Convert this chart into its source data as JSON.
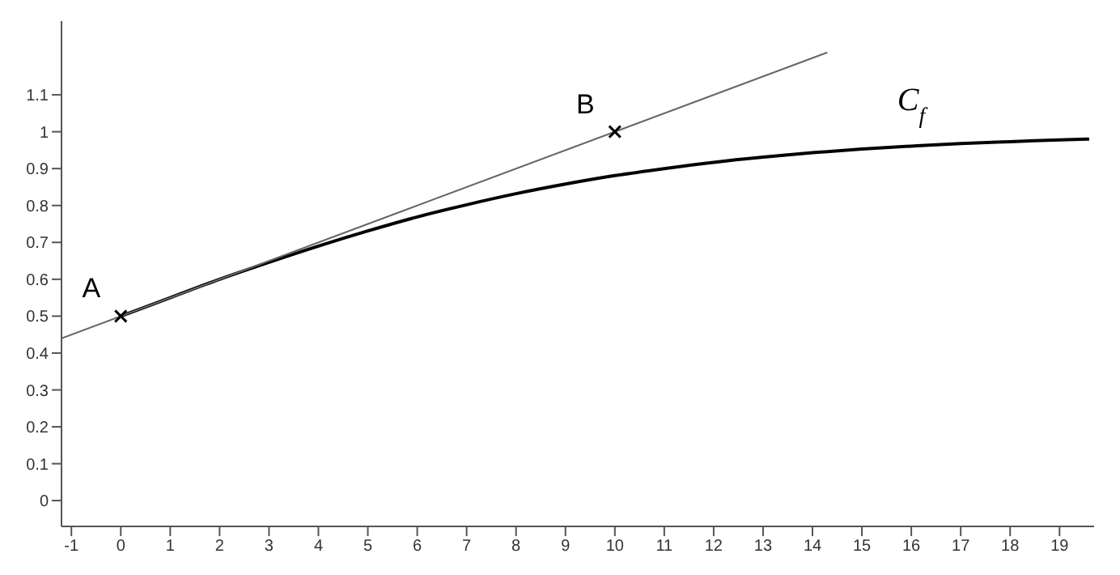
{
  "chart_data": {
    "type": "line",
    "xlim": [
      -1.2,
      19.7
    ],
    "ylim": [
      -0.07,
      1.3
    ],
    "xticks": [
      -1,
      0,
      1,
      2,
      3,
      4,
      5,
      6,
      7,
      8,
      9,
      10,
      11,
      12,
      13,
      14,
      15,
      16,
      17,
      18,
      19
    ],
    "yticks": [
      0,
      0.1,
      0.2,
      0.3,
      0.4,
      0.5,
      0.6,
      0.7,
      0.8,
      0.9,
      1,
      1.1
    ],
    "grid": false,
    "legend": false,
    "series": [
      {
        "name": "C$_{f}$",
        "color": "#000000",
        "x": [
          0,
          1,
          2,
          3,
          4,
          5,
          6,
          7,
          8,
          9,
          10,
          11,
          12,
          13,
          14,
          15,
          16,
          17,
          18,
          19,
          19.6
        ],
        "values": [
          0.5,
          0.55,
          0.6,
          0.646,
          0.69,
          0.731,
          0.769,
          0.802,
          0.832,
          0.858,
          0.881,
          0.9,
          0.917,
          0.931,
          0.943,
          0.953,
          0.961,
          0.968,
          0.973,
          0.978,
          0.98
        ]
      },
      {
        "color": "#666666",
        "x": [
          -1.2,
          14.3
        ],
        "values": [
          0.44,
          1.215
        ]
      },
      {
        "type": "scatter",
        "name": "A",
        "color": "#000000",
        "marker": "cross",
        "x": [
          0
        ],
        "values": [
          0.5
        ]
      },
      {
        "type": "scatter",
        "name": "B",
        "color": "#000000",
        "marker": "cross",
        "x": [
          10
        ],
        "values": [
          1
        ]
      }
    ]
  }
}
